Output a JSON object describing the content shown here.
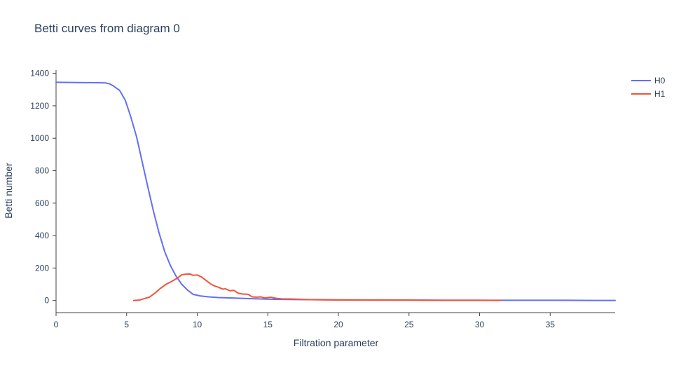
{
  "chart_data": {
    "type": "line",
    "title": "Betti curves from diagram 0",
    "xlabel": "Filtration parameter",
    "ylabel": "Betti number",
    "xlim": [
      0,
      39.6
    ],
    "ylim": [
      -75,
      1420
    ],
    "x_ticks": [
      0,
      5,
      10,
      15,
      20,
      25,
      30,
      35
    ],
    "y_ticks": [
      0,
      200,
      400,
      600,
      800,
      1000,
      1200,
      1400
    ],
    "grid": false,
    "legend_position": "top-right",
    "series": [
      {
        "name": "H0",
        "color": "#636efa",
        "x": [
          0,
          1,
          2,
          3,
          3.5,
          3.8,
          4.1,
          4.5,
          4.9,
          5.3,
          5.7,
          6.1,
          6.5,
          6.9,
          7.3,
          7.7,
          8.1,
          8.5,
          8.9,
          9.3,
          9.7,
          10.2,
          10.8,
          11.5,
          12.5,
          13.5,
          14.5,
          15.5,
          16.5,
          18,
          20,
          22,
          24,
          26,
          28,
          30,
          32,
          34,
          36,
          38,
          39.6
        ],
        "y": [
          1345,
          1344,
          1343,
          1342,
          1341,
          1335,
          1320,
          1295,
          1235,
          1130,
          1010,
          855,
          700,
          550,
          415,
          300,
          215,
          150,
          100,
          65,
          38,
          28,
          22,
          18,
          15,
          12,
          9,
          7,
          6,
          5,
          4,
          3,
          2,
          2,
          1,
          1,
          1,
          1,
          1,
          0,
          0
        ]
      },
      {
        "name": "H1",
        "color": "#ef553b",
        "x": [
          5.5,
          5.9,
          6.2,
          6.6,
          7.0,
          7.4,
          7.8,
          8.2,
          8.6,
          8.9,
          9.2,
          9.5,
          9.7,
          10.0,
          10.3,
          10.6,
          10.9,
          11.2,
          11.5,
          11.8,
          12.0,
          12.3,
          12.6,
          12.9,
          13.2,
          13.6,
          13.9,
          14.2,
          14.5,
          14.8,
          15.2,
          15.6,
          16.0,
          16.5,
          17.0,
          17.5,
          18.0,
          19.0,
          20.0,
          21.0,
          22.0,
          23.0,
          24.0,
          25.0,
          26.0,
          28.0,
          30.0,
          31.5
        ],
        "y": [
          0,
          2,
          10,
          20,
          45,
          75,
          100,
          118,
          138,
          158,
          162,
          163,
          155,
          157,
          145,
          125,
          105,
          90,
          82,
          70,
          72,
          60,
          62,
          45,
          40,
          38,
          22,
          20,
          22,
          15,
          20,
          13,
          10,
          9,
          8,
          6,
          5,
          4,
          3,
          3,
          2,
          3,
          2,
          2,
          1,
          1,
          1,
          0
        ]
      }
    ]
  }
}
